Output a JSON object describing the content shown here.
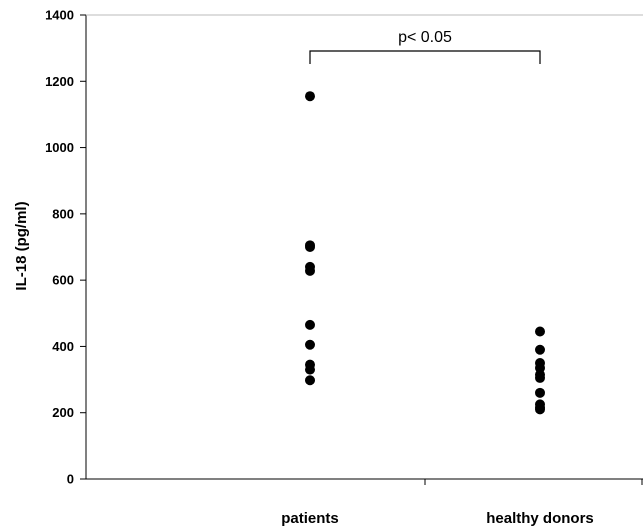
{
  "chart_data": {
    "type": "scatter",
    "categories": [
      "patients",
      "healthy donors"
    ],
    "ylabel": "IL-18 (pg/ml)",
    "xlabel": "",
    "ylim": [
      0,
      1400
    ],
    "yticks": [
      "0",
      "200",
      "400",
      "600",
      "800",
      "1000",
      "1200",
      "1400"
    ],
    "grid": false,
    "legend": "none",
    "series": [
      {
        "category": "patients",
        "values": [
          1155,
          705,
          700,
          640,
          628,
          465,
          405,
          345,
          330,
          298
        ]
      },
      {
        "category": "healthy donors",
        "values": [
          445,
          390,
          350,
          335,
          315,
          305,
          260,
          225,
          215,
          210
        ]
      }
    ],
    "annotation": {
      "text": "p< 0.05",
      "from": "patients",
      "to": "healthy donors"
    },
    "colors": {
      "marker": "#000000",
      "axis": "#000000"
    }
  }
}
